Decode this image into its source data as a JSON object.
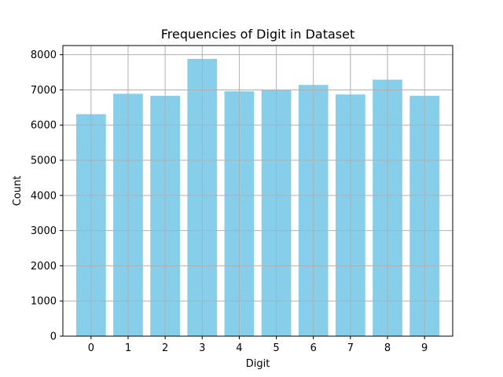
{
  "chart_data": {
    "type": "bar",
    "title": "Frequencies of Digit in Dataset",
    "xlabel": "Digit",
    "ylabel": "Count",
    "categories": [
      "0",
      "1",
      "2",
      "3",
      "4",
      "5",
      "6",
      "7",
      "8",
      "9"
    ],
    "values": [
      6310,
      6890,
      6830,
      7880,
      6960,
      7000,
      7140,
      6870,
      7290,
      6830
    ],
    "ylim": [
      0,
      8260
    ],
    "yticks": [
      0,
      1000,
      2000,
      3000,
      4000,
      5000,
      6000,
      7000,
      8000
    ],
    "grid": true,
    "bar_color": "#87ceeb"
  }
}
